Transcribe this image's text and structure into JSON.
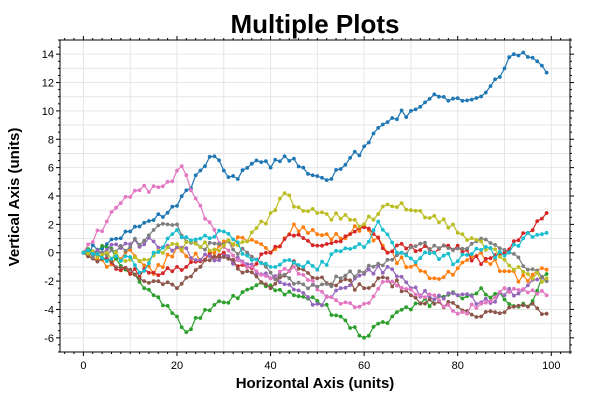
{
  "chart_data": {
    "type": "line",
    "title": "Multiple Plots",
    "xlabel": "Horizontal Axis (units)",
    "ylabel": "Vertical Axis (units)",
    "xlim": [
      -5,
      104
    ],
    "ylim": [
      -7,
      15
    ],
    "xticks": [
      0,
      20,
      40,
      60,
      80,
      100
    ],
    "yticks": [
      -6,
      -4,
      -2,
      0,
      2,
      4,
      6,
      8,
      10,
      12,
      14
    ],
    "grid": true,
    "legend": "none",
    "series": [
      {
        "color": "#1f77b4",
        "anchors": [
          [
            0,
            0
          ],
          [
            5,
            0.6
          ],
          [
            10,
            1.5
          ],
          [
            15,
            2.3
          ],
          [
            20,
            3.3
          ],
          [
            22,
            4.4
          ],
          [
            25,
            5.8
          ],
          [
            28,
            6.8
          ],
          [
            30,
            5.8
          ],
          [
            33,
            5.2
          ],
          [
            37,
            6.5
          ],
          [
            40,
            6.0
          ],
          [
            43,
            6.8
          ],
          [
            47,
            6.0
          ],
          [
            50,
            5.4
          ],
          [
            53,
            5.2
          ],
          [
            56,
            6.2
          ],
          [
            60,
            7.5
          ],
          [
            63,
            8.8
          ],
          [
            66,
            9.5
          ],
          [
            70,
            10.0
          ],
          [
            73,
            10.6
          ],
          [
            76,
            11.0
          ],
          [
            80,
            10.9
          ],
          [
            83,
            10.8
          ],
          [
            86,
            11.3
          ],
          [
            90,
            13.0
          ],
          [
            92,
            14.0
          ],
          [
            95,
            13.8
          ],
          [
            97,
            13.5
          ],
          [
            99,
            12.7
          ]
        ]
      },
      {
        "color": "#ff7f0e",
        "anchors": [
          [
            0,
            0
          ],
          [
            5,
            -1.0
          ],
          [
            10,
            0.2
          ],
          [
            15,
            -1.5
          ],
          [
            20,
            0.4
          ],
          [
            25,
            -0.6
          ],
          [
            30,
            0.8
          ],
          [
            35,
            0.8
          ],
          [
            40,
            0
          ],
          [
            45,
            2.0
          ],
          [
            50,
            1.3
          ],
          [
            55,
            1.0
          ],
          [
            60,
            2.0
          ],
          [
            65,
            0
          ],
          [
            70,
            -1.0
          ],
          [
            75,
            -1.8
          ],
          [
            80,
            -1.1
          ],
          [
            85,
            0
          ],
          [
            90,
            -1.3
          ],
          [
            95,
            -2.0
          ],
          [
            99,
            -1.2
          ]
        ]
      },
      {
        "color": "#2ca02c",
        "anchors": [
          [
            0,
            0
          ],
          [
            5,
            0.4
          ],
          [
            10,
            -1.5
          ],
          [
            15,
            -3.0
          ],
          [
            20,
            -4.5
          ],
          [
            22,
            -5.6
          ],
          [
            25,
            -4.6
          ],
          [
            30,
            -3.5
          ],
          [
            35,
            -2.6
          ],
          [
            40,
            -2.3
          ],
          [
            45,
            -3.0
          ],
          [
            50,
            -3.4
          ],
          [
            55,
            -4.5
          ],
          [
            60,
            -6.0
          ],
          [
            63,
            -5.0
          ],
          [
            66,
            -4.5
          ],
          [
            70,
            -4.0
          ],
          [
            75,
            -3.3
          ],
          [
            80,
            -3.0
          ],
          [
            85,
            -2.5
          ],
          [
            90,
            -3.3
          ],
          [
            95,
            -3.8
          ],
          [
            99,
            -1.5
          ]
        ]
      },
      {
        "color": "#d62728",
        "anchors": [
          [
            0,
            0
          ],
          [
            5,
            -0.4
          ],
          [
            10,
            -1.5
          ],
          [
            15,
            -1.4
          ],
          [
            20,
            -1.0
          ],
          [
            25,
            -0.6
          ],
          [
            30,
            0
          ],
          [
            35,
            -1.0
          ],
          [
            40,
            0
          ],
          [
            45,
            1.2
          ],
          [
            50,
            0.5
          ],
          [
            55,
            0.8
          ],
          [
            60,
            1.8
          ],
          [
            65,
            0
          ],
          [
            70,
            0.5
          ],
          [
            75,
            0
          ],
          [
            80,
            0.5
          ],
          [
            85,
            -0.8
          ],
          [
            90,
            0
          ],
          [
            95,
            1.4
          ],
          [
            99,
            2.8
          ]
        ]
      },
      {
        "color": "#9467bd",
        "anchors": [
          [
            0,
            0
          ],
          [
            5,
            0.2
          ],
          [
            10,
            0.6
          ],
          [
            15,
            0.8
          ],
          [
            20,
            0.4
          ],
          [
            25,
            -0.5
          ],
          [
            30,
            -0.2
          ],
          [
            35,
            -0.8
          ],
          [
            40,
            -1.8
          ],
          [
            45,
            -2.6
          ],
          [
            50,
            -3.6
          ],
          [
            55,
            -2.5
          ],
          [
            60,
            -1.5
          ],
          [
            65,
            -1.0
          ],
          [
            70,
            -2.5
          ],
          [
            75,
            -3.3
          ],
          [
            80,
            -3.0
          ],
          [
            85,
            -3.5
          ],
          [
            90,
            -3.0
          ],
          [
            95,
            -2.3
          ],
          [
            99,
            -2.0
          ]
        ]
      },
      {
        "color": "#8c564b",
        "anchors": [
          [
            0,
            0
          ],
          [
            5,
            -0.5
          ],
          [
            10,
            -1.2
          ],
          [
            15,
            -2.0
          ],
          [
            20,
            -2.5
          ],
          [
            25,
            -1.0
          ],
          [
            30,
            -0.3
          ],
          [
            35,
            -1.3
          ],
          [
            40,
            -2.5
          ],
          [
            45,
            -0.6
          ],
          [
            50,
            -1.8
          ],
          [
            55,
            -2.0
          ],
          [
            60,
            -2.5
          ],
          [
            65,
            -1.8
          ],
          [
            70,
            -3.0
          ],
          [
            75,
            -3.6
          ],
          [
            80,
            -3.8
          ],
          [
            85,
            -4.5
          ],
          [
            90,
            -4.2
          ],
          [
            95,
            -3.8
          ],
          [
            99,
            -4.3
          ]
        ]
      },
      {
        "color": "#e377c2",
        "anchors": [
          [
            0,
            0
          ],
          [
            5,
            2.2
          ],
          [
            8,
            3.5
          ],
          [
            12,
            4.4
          ],
          [
            15,
            4.7
          ],
          [
            18,
            5.0
          ],
          [
            21,
            6.1
          ],
          [
            23,
            4.4
          ],
          [
            26,
            2.4
          ],
          [
            30,
            0.4
          ],
          [
            35,
            -1.0
          ],
          [
            40,
            -1.8
          ],
          [
            45,
            -1.0
          ],
          [
            50,
            -2.6
          ],
          [
            55,
            -3.6
          ],
          [
            60,
            -3.6
          ],
          [
            65,
            -2.0
          ],
          [
            70,
            -2.6
          ],
          [
            75,
            -3.0
          ],
          [
            80,
            -4.3
          ],
          [
            85,
            -3.6
          ],
          [
            90,
            -2.5
          ],
          [
            95,
            -2.8
          ],
          [
            99,
            -3.0
          ]
        ]
      },
      {
        "color": "#7f7f7f",
        "anchors": [
          [
            0,
            0
          ],
          [
            5,
            -0.2
          ],
          [
            10,
            0.4
          ],
          [
            15,
            1.6
          ],
          [
            20,
            2.0
          ],
          [
            22,
            0.8
          ],
          [
            25,
            0.4
          ],
          [
            30,
            0.6
          ],
          [
            35,
            0
          ],
          [
            40,
            -1.4
          ],
          [
            45,
            -2.2
          ],
          [
            50,
            -2.4
          ],
          [
            55,
            -1.8
          ],
          [
            60,
            -1.4
          ],
          [
            65,
            -0.5
          ],
          [
            70,
            0.4
          ],
          [
            75,
            0.5
          ],
          [
            80,
            0.3
          ],
          [
            85,
            1.0
          ],
          [
            90,
            0.2
          ],
          [
            95,
            -1.2
          ],
          [
            99,
            -2.0
          ]
        ]
      },
      {
        "color": "#bcbd22",
        "anchors": [
          [
            0,
            0
          ],
          [
            5,
            0
          ],
          [
            10,
            -0.5
          ],
          [
            15,
            -0.2
          ],
          [
            20,
            0.6
          ],
          [
            25,
            0.4
          ],
          [
            30,
            0.5
          ],
          [
            35,
            0.8
          ],
          [
            40,
            2.8
          ],
          [
            43,
            4.2
          ],
          [
            46,
            3.2
          ],
          [
            50,
            2.8
          ],
          [
            55,
            2.4
          ],
          [
            60,
            2.0
          ],
          [
            65,
            3.4
          ],
          [
            70,
            3.0
          ],
          [
            75,
            2.6
          ],
          [
            80,
            1.4
          ],
          [
            85,
            0.8
          ],
          [
            90,
            -0.5
          ],
          [
            95,
            -1.5
          ],
          [
            99,
            -1.8
          ]
        ]
      },
      {
        "color": "#17becf",
        "anchors": [
          [
            0,
            0
          ],
          [
            5,
            -0.6
          ],
          [
            10,
            -0.3
          ],
          [
            12,
            -1.4
          ],
          [
            15,
            0
          ],
          [
            18,
            1.0
          ],
          [
            20,
            1.6
          ],
          [
            22,
            1.1
          ],
          [
            25,
            1.0
          ],
          [
            30,
            1.5
          ],
          [
            35,
            -0.2
          ],
          [
            40,
            -1.0
          ],
          [
            45,
            -0.7
          ],
          [
            50,
            -1.2
          ],
          [
            55,
            0.1
          ],
          [
            60,
            0.4
          ],
          [
            63,
            2.2
          ],
          [
            67,
            0
          ],
          [
            70,
            -0.4
          ],
          [
            75,
            0
          ],
          [
            80,
            -0.6
          ],
          [
            85,
            0.2
          ],
          [
            90,
            -0.2
          ],
          [
            95,
            1.4
          ],
          [
            99,
            1.4
          ]
        ]
      }
    ]
  }
}
